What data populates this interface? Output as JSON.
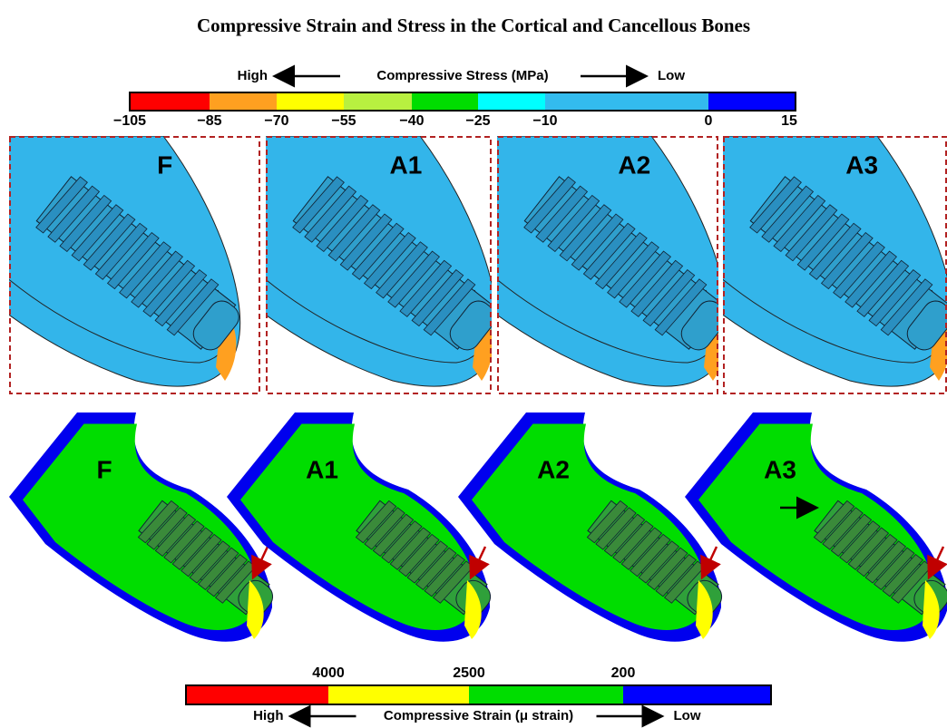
{
  "title": "Compressive Strain and Stress in the Cortical and Cancellous Bones",
  "stress_bar": {
    "label": "Compressive Stress (MPa)",
    "high": "High",
    "low": "Low",
    "ticks": [
      "−105",
      "−85",
      "−70",
      "−55",
      "−40",
      "−25",
      "−10",
      "0",
      "15"
    ],
    "colors": [
      "#ff0000",
      "#ffa020",
      "#ffff00",
      "#b8f040",
      "#00dd00",
      "#00ffff",
      "#33bbee",
      "#0000ff"
    ]
  },
  "top_panels": [
    "F",
    "A1",
    "A2",
    "A3"
  ],
  "bottom_panels": [
    "F",
    "A1",
    "A2",
    "A3"
  ],
  "strain_bar": {
    "label": "Compressive Strain (μ strain)",
    "high": "High",
    "low": "Low",
    "ticks": [
      "4000",
      "2500",
      "200"
    ],
    "colors": [
      "#ff0000",
      "#ffff00",
      "#00dd00",
      "#0000ff"
    ]
  }
}
